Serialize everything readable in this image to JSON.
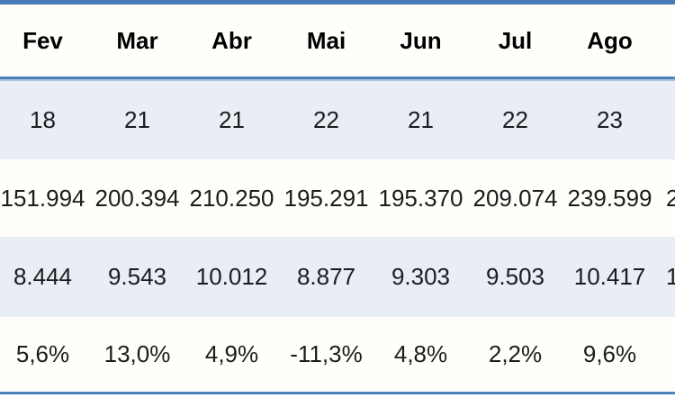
{
  "table": {
    "columns": [
      "Fev",
      "Mar",
      "Abr",
      "Mai",
      "Jun",
      "Jul",
      "Ago",
      ""
    ],
    "rows": [
      {
        "cells": [
          "18",
          "21",
          "21",
          "22",
          "21",
          "22",
          "23",
          ""
        ]
      },
      {
        "cells": [
          "151.994",
          "200.394",
          "210.250",
          "195.291",
          "195.370",
          "209.074",
          "239.599",
          "2"
        ]
      },
      {
        "cells": [
          "8.444",
          "9.543",
          "10.012",
          "8.877",
          "9.303",
          "9.503",
          "10.417",
          "1"
        ]
      },
      {
        "cells": [
          "5,6%",
          "13,0%",
          "4,9%",
          "-11,3%",
          "4,8%",
          "2,2%",
          "9,6%",
          ""
        ]
      }
    ],
    "colors": {
      "accent_border": "#4f81bd",
      "banded_row_fill": "#e9edf5",
      "row_background": "#fffefb",
      "header_text": "#000000",
      "body_text": "#1c1c1c"
    }
  },
  "chart_data": {
    "type": "table",
    "title": "",
    "categories": [
      "Fev",
      "Mar",
      "Abr",
      "Mai",
      "Jun",
      "Jul",
      "Ago"
    ],
    "series": [
      {
        "name": "",
        "values": [
          18,
          21,
          21,
          22,
          21,
          22,
          23
        ]
      },
      {
        "name": "",
        "values": [
          151994,
          200394,
          210250,
          195291,
          195370,
          209074,
          239599
        ]
      },
      {
        "name": "",
        "values": [
          8444,
          9543,
          10012,
          8877,
          9303,
          9503,
          10417
        ]
      },
      {
        "name": "",
        "unit": "%",
        "values": [
          5.6,
          13.0,
          4.9,
          -11.3,
          4.8,
          2.2,
          9.6
        ]
      }
    ],
    "layout_hints": {
      "banded_rows": true,
      "header_row_bold": true,
      "clipped_left_row_labels": true,
      "clipped_right_column": true
    }
  }
}
